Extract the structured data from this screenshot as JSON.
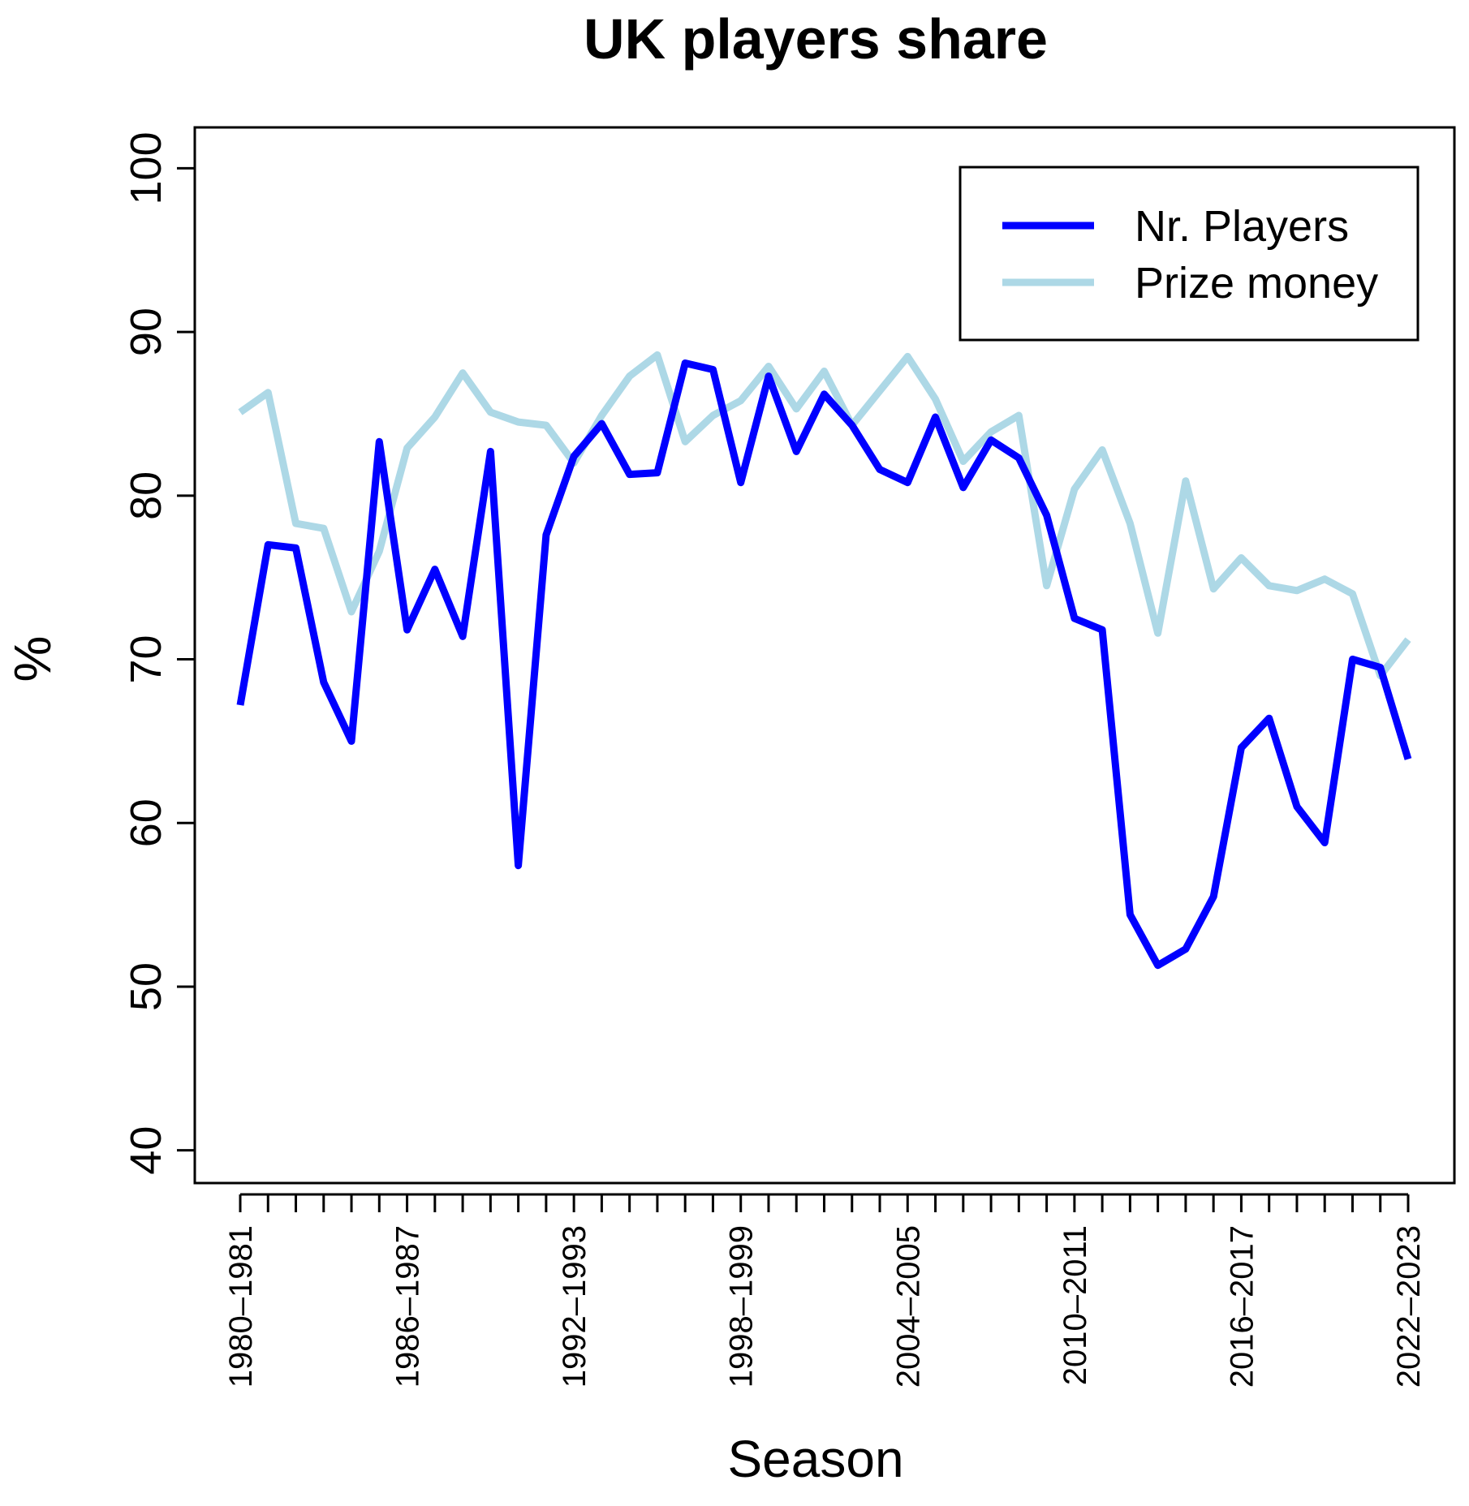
{
  "chart_data": {
    "type": "line",
    "title": "UK players share",
    "xlabel": "Season",
    "ylabel": "%",
    "ylim": [
      38,
      102.5
    ],
    "yticks": [
      40,
      50,
      60,
      70,
      80,
      90,
      100
    ],
    "xtick_labels": [
      "1980–1981",
      "1986–1987",
      "1992–1993",
      "1998–1999",
      "2004–2005",
      "2010–2011",
      "2016–2017",
      "2022–2023"
    ],
    "xtick_label_indices": [
      0,
      6,
      12,
      18,
      24,
      30,
      36,
      42
    ],
    "categories": [
      "1980–1981",
      "1981–1982",
      "1982–1983",
      "1983–1984",
      "1984–1985",
      "1985–1986",
      "1986–1987",
      "1987–1988",
      "1988–1989",
      "1989–1990",
      "1990–1991",
      "1991–1992",
      "1992–1993",
      "1993–1994",
      "1994–1995",
      "1995–1996",
      "1996–1997",
      "1997–1998",
      "1998–1999",
      "1999–2000",
      "2000–2001",
      "2001–2002",
      "2002–2003",
      "2003–2004",
      "2004–2005",
      "2005–2006",
      "2006–2007",
      "2007–2008",
      "2008–2009",
      "2009–2010",
      "2010–2011",
      "2011–2012",
      "2012–2013",
      "2013–2014",
      "2014–2015",
      "2015–2016",
      "2016–2017",
      "2017–2018",
      "2018–2019",
      "2019–2020",
      "2020–2021",
      "2021–2022",
      "2022–2023"
    ],
    "series": [
      {
        "name": "Nr. Players",
        "color": "#0000ff",
        "values": [
          67.2,
          77.0,
          76.8,
          68.6,
          65.0,
          83.3,
          71.8,
          75.5,
          71.4,
          82.7,
          57.4,
          77.6,
          82.4,
          84.4,
          81.3,
          81.4,
          88.1,
          87.7,
          80.8,
          87.3,
          82.7,
          86.2,
          84.3,
          81.6,
          80.8,
          84.8,
          80.5,
          83.4,
          82.3,
          78.8,
          72.5,
          71.8,
          54.4,
          51.3,
          52.3,
          55.5,
          64.6,
          66.4,
          61.0,
          58.8,
          70.0,
          69.5,
          63.9
        ]
      },
      {
        "name": "Prize money",
        "color": "#add8e6",
        "values": [
          85.1,
          86.3,
          78.3,
          78.0,
          72.9,
          76.6,
          82.9,
          84.8,
          87.5,
          85.1,
          84.5,
          84.3,
          82.0,
          84.9,
          87.3,
          88.6,
          83.3,
          84.9,
          85.8,
          87.9,
          85.3,
          87.6,
          84.3,
          86.4,
          88.5,
          85.9,
          82.1,
          83.9,
          84.9,
          74.5,
          80.4,
          82.8,
          78.3,
          71.6,
          80.9,
          74.3,
          76.2,
          74.5,
          74.2,
          74.9,
          74.0,
          69.0,
          71.2
        ]
      }
    ],
    "legend": {
      "position": "top-right"
    },
    "grid": false
  }
}
